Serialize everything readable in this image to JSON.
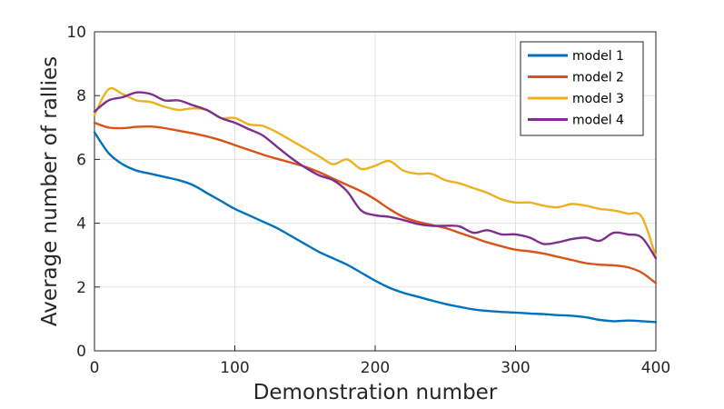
{
  "chart_data": {
    "type": "line",
    "xlabel": "Demonstration number",
    "ylabel": "Average number of rallies",
    "xlim": [
      0,
      400
    ],
    "ylim": [
      0,
      10
    ],
    "xticks": [
      0,
      100,
      200,
      300,
      400
    ],
    "yticks": [
      0,
      2,
      4,
      6,
      8,
      10
    ],
    "grid": true,
    "legend_position": "top-right",
    "x": [
      0,
      10,
      20,
      30,
      40,
      50,
      60,
      70,
      80,
      90,
      100,
      110,
      120,
      130,
      140,
      150,
      160,
      170,
      180,
      190,
      200,
      210,
      220,
      230,
      240,
      250,
      260,
      270,
      280,
      290,
      300,
      310,
      320,
      330,
      340,
      350,
      360,
      370,
      380,
      390,
      400
    ],
    "series": [
      {
        "name": "model 1",
        "color": "#0072bd",
        "values": [
          6.85,
          6.2,
          5.85,
          5.65,
          5.55,
          5.45,
          5.35,
          5.2,
          4.95,
          4.7,
          4.45,
          4.25,
          4.05,
          3.85,
          3.6,
          3.35,
          3.1,
          2.9,
          2.7,
          2.45,
          2.2,
          1.98,
          1.82,
          1.7,
          1.58,
          1.47,
          1.38,
          1.3,
          1.25,
          1.22,
          1.2,
          1.17,
          1.15,
          1.12,
          1.1,
          1.05,
          0.97,
          0.93,
          0.95,
          0.93,
          0.9
        ]
      },
      {
        "name": "model 2",
        "color": "#d95319",
        "values": [
          7.15,
          7.0,
          6.98,
          7.02,
          7.03,
          6.98,
          6.9,
          6.82,
          6.72,
          6.6,
          6.45,
          6.3,
          6.15,
          6.02,
          5.9,
          5.77,
          5.6,
          5.4,
          5.2,
          5.0,
          4.75,
          4.45,
          4.2,
          4.05,
          3.95,
          3.85,
          3.7,
          3.55,
          3.4,
          3.28,
          3.17,
          3.12,
          3.05,
          2.95,
          2.85,
          2.75,
          2.7,
          2.68,
          2.62,
          2.45,
          2.12
        ]
      },
      {
        "name": "model 3",
        "color": "#edb120",
        "values": [
          7.4,
          8.2,
          8.05,
          7.85,
          7.8,
          7.65,
          7.55,
          7.6,
          7.55,
          7.3,
          7.3,
          7.1,
          7.05,
          6.85,
          6.6,
          6.35,
          6.1,
          5.85,
          6.0,
          5.7,
          5.8,
          5.95,
          5.65,
          5.55,
          5.55,
          5.35,
          5.25,
          5.1,
          4.95,
          4.75,
          4.65,
          4.65,
          4.55,
          4.5,
          4.6,
          4.55,
          4.45,
          4.4,
          4.3,
          4.2,
          2.95
        ]
      },
      {
        "name": "model 4",
        "color": "#7e2f8e",
        "values": [
          7.5,
          7.85,
          7.95,
          8.1,
          8.05,
          7.85,
          7.85,
          7.7,
          7.55,
          7.3,
          7.15,
          6.95,
          6.75,
          6.4,
          6.05,
          5.75,
          5.5,
          5.35,
          5.0,
          4.4,
          4.25,
          4.2,
          4.1,
          3.98,
          3.92,
          3.92,
          3.9,
          3.7,
          3.78,
          3.65,
          3.65,
          3.55,
          3.35,
          3.4,
          3.5,
          3.55,
          3.45,
          3.7,
          3.65,
          3.55,
          2.9
        ]
      }
    ]
  }
}
